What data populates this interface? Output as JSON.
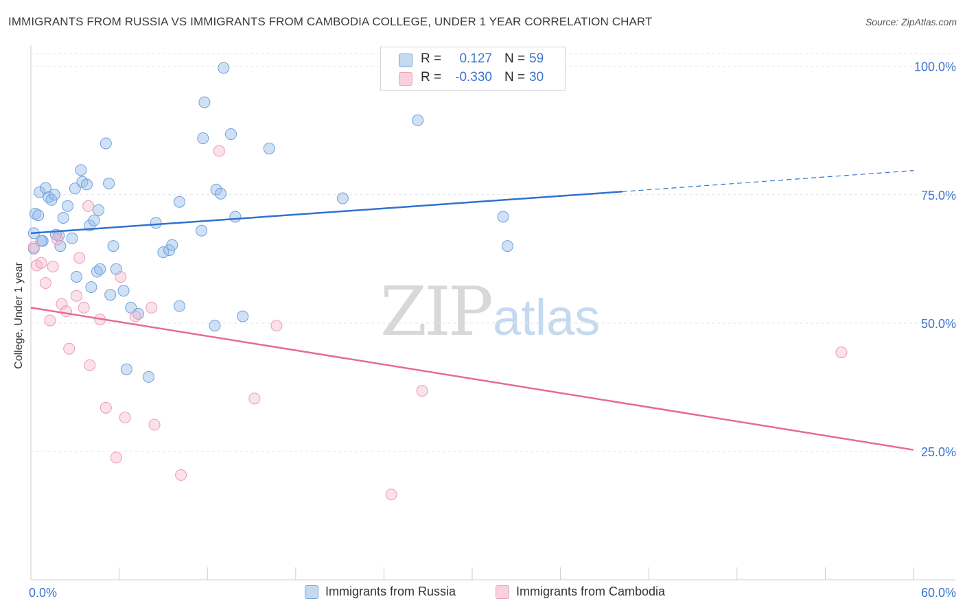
{
  "title": "IMMIGRANTS FROM RUSSIA VS IMMIGRANTS FROM CAMBODIA COLLEGE, UNDER 1 YEAR CORRELATION CHART",
  "source": "Source: ZipAtlas.com",
  "watermark": {
    "zip": "ZIP",
    "atlas": "atlas"
  },
  "legend_top": {
    "russia": {
      "r_label": "R =",
      "r_value": "0.127",
      "n_label": "N =",
      "n_value": "59"
    },
    "cambodia": {
      "r_label": "R =",
      "r_value": "-0.330",
      "n_label": "N =",
      "n_value": "30"
    }
  },
  "legend_bottom": {
    "russia": "Immigrants from Russia",
    "cambodia": "Immigrants from Cambodia"
  },
  "chart_data": {
    "type": "scatter",
    "title": "IMMIGRANTS FROM RUSSIA VS IMMIGRANTS FROM CAMBODIA COLLEGE, UNDER 1 YEAR CORRELATION CHART",
    "xlabel": "",
    "ylabel": "College, Under 1 year",
    "xlim": [
      0,
      60
    ],
    "ylim": [
      0,
      102.5
    ],
    "x_tick_labels": [
      "0.0%",
      "60.0%"
    ],
    "y_ticks": [
      25,
      50,
      75,
      100
    ],
    "y_tick_labels": [
      "25.0%",
      "50.0%",
      "75.0%",
      "100.0%"
    ],
    "colors": {
      "russia": "#6f9fdc",
      "russia_line": "#2f72d2",
      "cambodia": "#ee9ab5",
      "cambodia_line": "#e46b96",
      "axis_label": "#3a74cc"
    },
    "series": [
      {
        "name": "Immigrants from Russia",
        "points": [
          [
            0.2,
            67.5
          ],
          [
            0.2,
            64.5
          ],
          [
            0.3,
            71.3
          ],
          [
            0.5,
            71.0
          ],
          [
            0.6,
            75.5
          ],
          [
            0.8,
            66.0
          ],
          [
            1.0,
            76.3
          ],
          [
            1.2,
            74.5
          ],
          [
            1.4,
            74.0
          ],
          [
            1.6,
            75.0
          ],
          [
            1.9,
            67.0
          ],
          [
            2.0,
            65.0
          ],
          [
            2.2,
            70.5
          ],
          [
            2.5,
            72.8
          ],
          [
            2.8,
            66.5
          ],
          [
            3.0,
            76.2
          ],
          [
            3.1,
            59.0
          ],
          [
            3.4,
            79.8
          ],
          [
            3.5,
            77.5
          ],
          [
            3.8,
            77.0
          ],
          [
            4.0,
            69.0
          ],
          [
            4.1,
            57.0
          ],
          [
            4.3,
            70.0
          ],
          [
            4.5,
            60.0
          ],
          [
            4.6,
            72.0
          ],
          [
            4.7,
            60.5
          ],
          [
            5.1,
            85.0
          ],
          [
            5.3,
            77.2
          ],
          [
            5.4,
            55.5
          ],
          [
            5.6,
            65.0
          ],
          [
            5.8,
            60.5
          ],
          [
            6.3,
            56.3
          ],
          [
            6.5,
            41.0
          ],
          [
            6.8,
            53.0
          ],
          [
            7.3,
            51.8
          ],
          [
            8.0,
            39.5
          ],
          [
            8.5,
            69.5
          ],
          [
            9.0,
            63.8
          ],
          [
            9.4,
            64.2
          ],
          [
            9.6,
            65.2
          ],
          [
            10.1,
            73.6
          ],
          [
            10.1,
            53.3
          ],
          [
            11.6,
            68.0
          ],
          [
            11.7,
            86.0
          ],
          [
            11.8,
            93.0
          ],
          [
            12.5,
            49.5
          ],
          [
            12.6,
            76.0
          ],
          [
            12.9,
            75.2
          ],
          [
            13.1,
            99.7
          ],
          [
            13.6,
            86.8
          ],
          [
            13.9,
            70.7
          ],
          [
            14.4,
            51.3
          ],
          [
            16.2,
            84.0
          ],
          [
            21.2,
            74.3
          ],
          [
            26.3,
            89.5
          ],
          [
            32.1,
            70.7
          ],
          [
            32.4,
            65.0
          ],
          [
            0.7,
            66.0
          ],
          [
            1.7,
            67.2
          ]
        ]
      },
      {
        "name": "Immigrants from Cambodia",
        "points": [
          [
            0.2,
            64.8
          ],
          [
            0.4,
            61.2
          ],
          [
            0.7,
            61.7
          ],
          [
            1.0,
            57.8
          ],
          [
            1.3,
            50.5
          ],
          [
            1.5,
            61.0
          ],
          [
            1.8,
            66.3
          ],
          [
            2.1,
            53.7
          ],
          [
            2.4,
            52.3
          ],
          [
            2.6,
            45.0
          ],
          [
            3.1,
            55.3
          ],
          [
            3.3,
            62.7
          ],
          [
            3.6,
            53.0
          ],
          [
            3.9,
            72.8
          ],
          [
            4.0,
            41.8
          ],
          [
            4.7,
            50.7
          ],
          [
            5.1,
            33.5
          ],
          [
            5.8,
            23.8
          ],
          [
            6.1,
            59.0
          ],
          [
            6.4,
            31.6
          ],
          [
            7.1,
            51.3
          ],
          [
            8.2,
            53.0
          ],
          [
            8.4,
            30.2
          ],
          [
            10.2,
            20.4
          ],
          [
            12.8,
            83.5
          ],
          [
            15.2,
            35.3
          ],
          [
            16.7,
            49.5
          ],
          [
            24.5,
            16.6
          ],
          [
            26.6,
            36.8
          ],
          [
            55.1,
            44.3
          ]
        ]
      }
    ],
    "trendlines": [
      {
        "name": "Immigrants from Russia",
        "x_solid": [
          0,
          40.2
        ],
        "y_solid": [
          67.5,
          75.6
        ],
        "x_dashed": [
          40.2,
          60
        ],
        "y_dashed": [
          75.6,
          79.7
        ]
      },
      {
        "name": "Immigrants from Cambodia",
        "x": [
          0,
          60
        ],
        "y": [
          53.0,
          25.3
        ]
      }
    ]
  }
}
